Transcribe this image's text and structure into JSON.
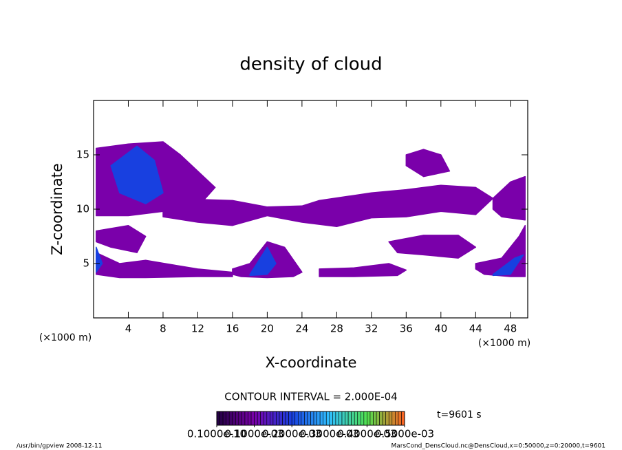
{
  "chart_data": {
    "type": "contour",
    "title": "density of cloud",
    "x_label": "X-coordinate",
    "y_label": "Z-coordinate",
    "x_unit": "(×1000 m)",
    "y_unit": "(×1000 m)",
    "xlim": [
      0,
      50
    ],
    "ylim": [
      0,
      20
    ],
    "xticks": [
      4,
      8,
      12,
      16,
      20,
      24,
      28,
      32,
      36,
      40,
      44,
      48
    ],
    "yticks": [
      5,
      10,
      15
    ],
    "contour_interval": "CONTOUR INTERVAL = 2.000E-04",
    "time_label": "t=9601 s",
    "clim": [
      0,
      0.0005
    ],
    "colorbar_colors": [
      "#200040",
      "#7a00aa",
      "#1840e0",
      "#30c0ff",
      "#50e050",
      "#ff6020"
    ],
    "colorbar_ticks": [
      {
        "value": 1e-11,
        "label": "0.1000e-10"
      },
      {
        "value": 0.0001,
        "label": "0.1000e-03"
      },
      {
        "value": 0.0002,
        "label": "0.2000e-03"
      },
      {
        "value": 0.0003,
        "label": "0.3000e-03"
      },
      {
        "value": 0.0004,
        "label": "0.4000e-03"
      },
      {
        "value": 0.0005,
        "label": "0.5000e-03"
      }
    ],
    "regions": [
      {
        "level": 0.0001,
        "x": [
          0.3,
          4,
          8,
          10,
          12,
          14,
          12,
          8,
          4,
          0.3
        ],
        "z": [
          15.6,
          16,
          16.2,
          15,
          13.5,
          12,
          10.2,
          9.8,
          9.4,
          9.4
        ]
      },
      {
        "level": 0.0001,
        "x": [
          8,
          16,
          20,
          24,
          26,
          32,
          36,
          40,
          44,
          46,
          44,
          40,
          36,
          32,
          28,
          24,
          20,
          16,
          12,
          8
        ],
        "z": [
          11,
          10.8,
          10.2,
          10.3,
          10.8,
          11.5,
          11.8,
          12.2,
          12,
          11,
          9.5,
          9.8,
          9.3,
          9.2,
          8.4,
          8.8,
          9.4,
          8.5,
          8.8,
          9.3
        ]
      },
      {
        "level": 0.0001,
        "x": [
          0.3,
          4,
          6,
          5,
          2,
          0.3
        ],
        "z": [
          8,
          8.5,
          7.5,
          6,
          6.5,
          7
        ]
      },
      {
        "level": 0.0001,
        "x": [
          0.3,
          3,
          6,
          12,
          16,
          16,
          12,
          6,
          3,
          0.3
        ],
        "z": [
          6,
          5,
          5.3,
          4.5,
          4.2,
          3.8,
          3.8,
          3.7,
          3.7,
          4
        ]
      },
      {
        "level": 0.0001,
        "x": [
          16,
          18,
          20,
          22,
          24,
          23,
          20,
          17,
          16
        ],
        "z": [
          4.5,
          5,
          7,
          6.5,
          4.2,
          3.8,
          3.7,
          3.8,
          4
        ]
      },
      {
        "level": 0.0001,
        "x": [
          26,
          30,
          34,
          36,
          35,
          30,
          26
        ],
        "z": [
          4.5,
          4.6,
          5,
          4.4,
          3.9,
          3.8,
          3.8
        ]
      },
      {
        "level": 0.0001,
        "x": [
          34,
          38,
          42,
          44,
          42,
          38,
          35
        ],
        "z": [
          7,
          7.6,
          7.6,
          6.5,
          5.5,
          5.8,
          6
        ]
      },
      {
        "level": 0.0001,
        "x": [
          36,
          38,
          40,
          41,
          38,
          36
        ],
        "z": [
          15,
          15.5,
          15,
          13.5,
          13,
          14
        ]
      },
      {
        "level": 0.0001,
        "x": [
          44,
          47,
          49,
          49.7,
          49.7,
          48,
          45,
          44
        ],
        "z": [
          5,
          5.5,
          7.5,
          8.5,
          3.8,
          3.8,
          4,
          4.5
        ]
      },
      {
        "level": 0.0001,
        "x": [
          46,
          48,
          49.7,
          49.7,
          47,
          46
        ],
        "z": [
          11,
          12.5,
          13,
          9,
          9.3,
          10
        ]
      },
      {
        "level": 0.0002,
        "x": [
          2,
          5,
          7,
          8,
          6,
          3
        ],
        "z": [
          14,
          15.8,
          14.5,
          11.5,
          10.5,
          11.5
        ]
      },
      {
        "level": 0.0002,
        "x": [
          18,
          20,
          21,
          20,
          18
        ],
        "z": [
          4,
          6.5,
          5,
          4,
          3.9
        ]
      },
      {
        "level": 0.0002,
        "x": [
          46,
          48.5,
          49.5,
          48,
          46
        ],
        "z": [
          4,
          5.5,
          5.8,
          4,
          3.9
        ]
      },
      {
        "level": 0.0002,
        "x": [
          0.3,
          1,
          0.3
        ],
        "z": [
          6.5,
          5,
          4.2
        ]
      }
    ],
    "footer_left": "/usr/bin/gpview  2008-12-11",
    "footer_right": "MarsCond_DensCloud.nc@DensCloud,x=0:50000,z=0:20000,t=9601"
  }
}
